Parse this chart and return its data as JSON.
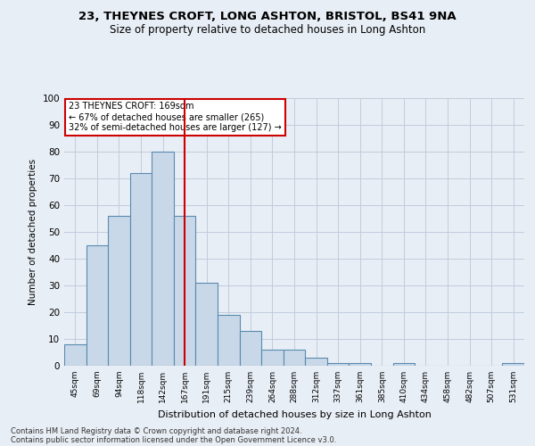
{
  "title1": "23, THEYNES CROFT, LONG ASHTON, BRISTOL, BS41 9NA",
  "title2": "Size of property relative to detached houses in Long Ashton",
  "xlabel": "Distribution of detached houses by size in Long Ashton",
  "ylabel": "Number of detached properties",
  "footer1": "Contains HM Land Registry data © Crown copyright and database right 2024.",
  "footer2": "Contains public sector information licensed under the Open Government Licence v3.0.",
  "categories": [
    "45sqm",
    "69sqm",
    "94sqm",
    "118sqm",
    "142sqm",
    "167sqm",
    "191sqm",
    "215sqm",
    "239sqm",
    "264sqm",
    "288sqm",
    "312sqm",
    "337sqm",
    "361sqm",
    "385sqm",
    "410sqm",
    "434sqm",
    "458sqm",
    "482sqm",
    "507sqm",
    "531sqm"
  ],
  "values": [
    8,
    45,
    56,
    72,
    80,
    56,
    31,
    19,
    13,
    6,
    6,
    3,
    1,
    1,
    0,
    1,
    0,
    0,
    0,
    0,
    1
  ],
  "bar_color": "#c8d8e8",
  "bar_edge_color": "#5a8ab0",
  "vline_x": 5,
  "vline_color": "#cc0000",
  "annotation_text": "23 THEYNES CROFT: 169sqm\n← 67% of detached houses are smaller (265)\n32% of semi-detached houses are larger (127) →",
  "annotation_box_color": "#ffffff",
  "annotation_box_edge": "#cc0000",
  "grid_color": "#c0ccdd",
  "bg_color": "#e8eef5",
  "ylim": [
    0,
    100
  ],
  "yticks": [
    0,
    10,
    20,
    30,
    40,
    50,
    60,
    70,
    80,
    90,
    100
  ]
}
